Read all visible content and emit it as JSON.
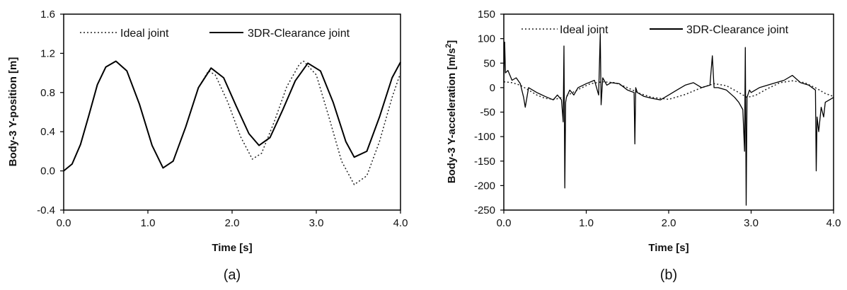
{
  "chart_data": [
    {
      "type": "line",
      "panel_label": "(a)",
      "xlabel": "Time [s]",
      "ylabel": "Body-3 Y-position [m]",
      "xlim": [
        0,
        4
      ],
      "ylim": [
        -0.4,
        1.6
      ],
      "xticks": [
        "0.0",
        "1.0",
        "2.0",
        "3.0",
        "4.0"
      ],
      "yticks": [
        "-0.4",
        "0.0",
        "0.4",
        "0.8",
        "1.2",
        "1.6"
      ],
      "legend_position": "top",
      "grid": false,
      "series": [
        {
          "name": "Ideal joint",
          "style": "dotted",
          "color": "#222222",
          "x": [
            0.0,
            0.1,
            0.2,
            0.3,
            0.4,
            0.5,
            0.62,
            0.75,
            0.9,
            1.05,
            1.18,
            1.3,
            1.45,
            1.6,
            1.72,
            1.8,
            1.95,
            2.1,
            2.24,
            2.35,
            2.5,
            2.65,
            2.8,
            2.85,
            3.0,
            3.15,
            3.3,
            3.45,
            3.6,
            3.75,
            3.9,
            4.0
          ],
          "y": [
            0.0,
            0.07,
            0.27,
            0.57,
            0.88,
            1.06,
            1.12,
            1.02,
            0.68,
            0.26,
            0.03,
            0.1,
            0.45,
            0.85,
            1.02,
            0.98,
            0.7,
            0.35,
            0.12,
            0.18,
            0.5,
            0.86,
            1.09,
            1.12,
            0.98,
            0.55,
            0.1,
            -0.14,
            -0.05,
            0.3,
            0.75,
            1.0
          ]
        },
        {
          "name": "3DR-Clearance joint",
          "style": "solid",
          "color": "#000000",
          "x": [
            0.0,
            0.1,
            0.2,
            0.3,
            0.4,
            0.5,
            0.62,
            0.75,
            0.9,
            1.05,
            1.18,
            1.3,
            1.45,
            1.6,
            1.75,
            1.9,
            2.05,
            2.2,
            2.32,
            2.45,
            2.6,
            2.75,
            2.9,
            3.05,
            3.2,
            3.35,
            3.45,
            3.6,
            3.75,
            3.9,
            4.0
          ],
          "y": [
            0.0,
            0.07,
            0.27,
            0.57,
            0.88,
            1.06,
            1.12,
            1.02,
            0.68,
            0.26,
            0.03,
            0.1,
            0.45,
            0.85,
            1.05,
            0.95,
            0.66,
            0.38,
            0.26,
            0.34,
            0.62,
            0.92,
            1.1,
            1.02,
            0.7,
            0.3,
            0.14,
            0.2,
            0.55,
            0.95,
            1.11
          ]
        }
      ]
    },
    {
      "type": "line",
      "panel_label": "(b)",
      "xlabel": "Time [s]",
      "ylabel": "Body-3 Y-acceleration [m/s",
      "ylabel_sup": "2",
      "ylabel_end": "]",
      "xlim": [
        0,
        4
      ],
      "ylim": [
        -250,
        150
      ],
      "xticks": [
        "0.0",
        "1.0",
        "2.0",
        "3.0",
        "4.0"
      ],
      "yticks": [
        "-250",
        "-200",
        "-150",
        "-100",
        "-50",
        "0",
        "50",
        "100",
        "150"
      ],
      "legend_position": "top",
      "grid": false,
      "series": [
        {
          "name": "Ideal joint",
          "style": "dotted",
          "color": "#222222",
          "x": [
            0.0,
            0.1,
            0.2,
            0.3,
            0.4,
            0.5,
            0.62,
            0.75,
            0.9,
            1.05,
            1.2,
            1.35,
            1.5,
            1.65,
            1.8,
            2.0,
            2.2,
            2.4,
            2.55,
            2.7,
            2.85,
            2.95,
            3.05,
            3.2,
            3.35,
            3.5,
            3.65,
            3.8,
            3.9,
            4.0
          ],
          "y": [
            12,
            10,
            5,
            -5,
            -15,
            -22,
            -24,
            -18,
            -4,
            8,
            12,
            10,
            0,
            -12,
            -20,
            -24,
            -14,
            0,
            8,
            4,
            -10,
            -20,
            -16,
            -2,
            10,
            14,
            10,
            -2,
            -12,
            -18
          ]
        },
        {
          "name": "3DR-Clearance joint",
          "style": "solid",
          "color": "#000000",
          "x": [
            0.0,
            0.01,
            0.02,
            0.05,
            0.1,
            0.15,
            0.2,
            0.24,
            0.26,
            0.3,
            0.4,
            0.5,
            0.6,
            0.65,
            0.7,
            0.72,
            0.73,
            0.74,
            0.75,
            0.76,
            0.8,
            0.85,
            0.9,
            1.0,
            1.1,
            1.15,
            1.17,
            1.18,
            1.2,
            1.25,
            1.3,
            1.4,
            1.5,
            1.58,
            1.59,
            1.6,
            1.62,
            1.7,
            1.8,
            1.9,
            2.0,
            2.1,
            2.2,
            2.3,
            2.4,
            2.5,
            2.53,
            2.55,
            2.6,
            2.7,
            2.8,
            2.85,
            2.9,
            2.92,
            2.93,
            2.94,
            2.95,
            2.96,
            2.98,
            3.0,
            3.1,
            3.2,
            3.3,
            3.4,
            3.5,
            3.6,
            3.7,
            3.78,
            3.79,
            3.8,
            3.82,
            3.85,
            3.88,
            3.9,
            3.95,
            4.0
          ],
          "y": [
            10,
            93,
            30,
            35,
            15,
            20,
            8,
            -20,
            -40,
            0,
            -10,
            -18,
            -25,
            -15,
            -25,
            -70,
            85,
            -205,
            -30,
            -20,
            -5,
            -15,
            0,
            8,
            15,
            -15,
            110,
            -35,
            20,
            5,
            10,
            8,
            -5,
            -10,
            -115,
            0,
            -10,
            -18,
            -22,
            -25,
            -15,
            -5,
            5,
            10,
            0,
            5,
            65,
            0,
            0,
            -5,
            -20,
            -30,
            -45,
            -130,
            82,
            -240,
            -20,
            -15,
            -5,
            -10,
            0,
            5,
            10,
            15,
            25,
            10,
            5,
            -5,
            -170,
            -60,
            -90,
            -40,
            -60,
            -30,
            -25,
            -20
          ]
        }
      ]
    }
  ]
}
